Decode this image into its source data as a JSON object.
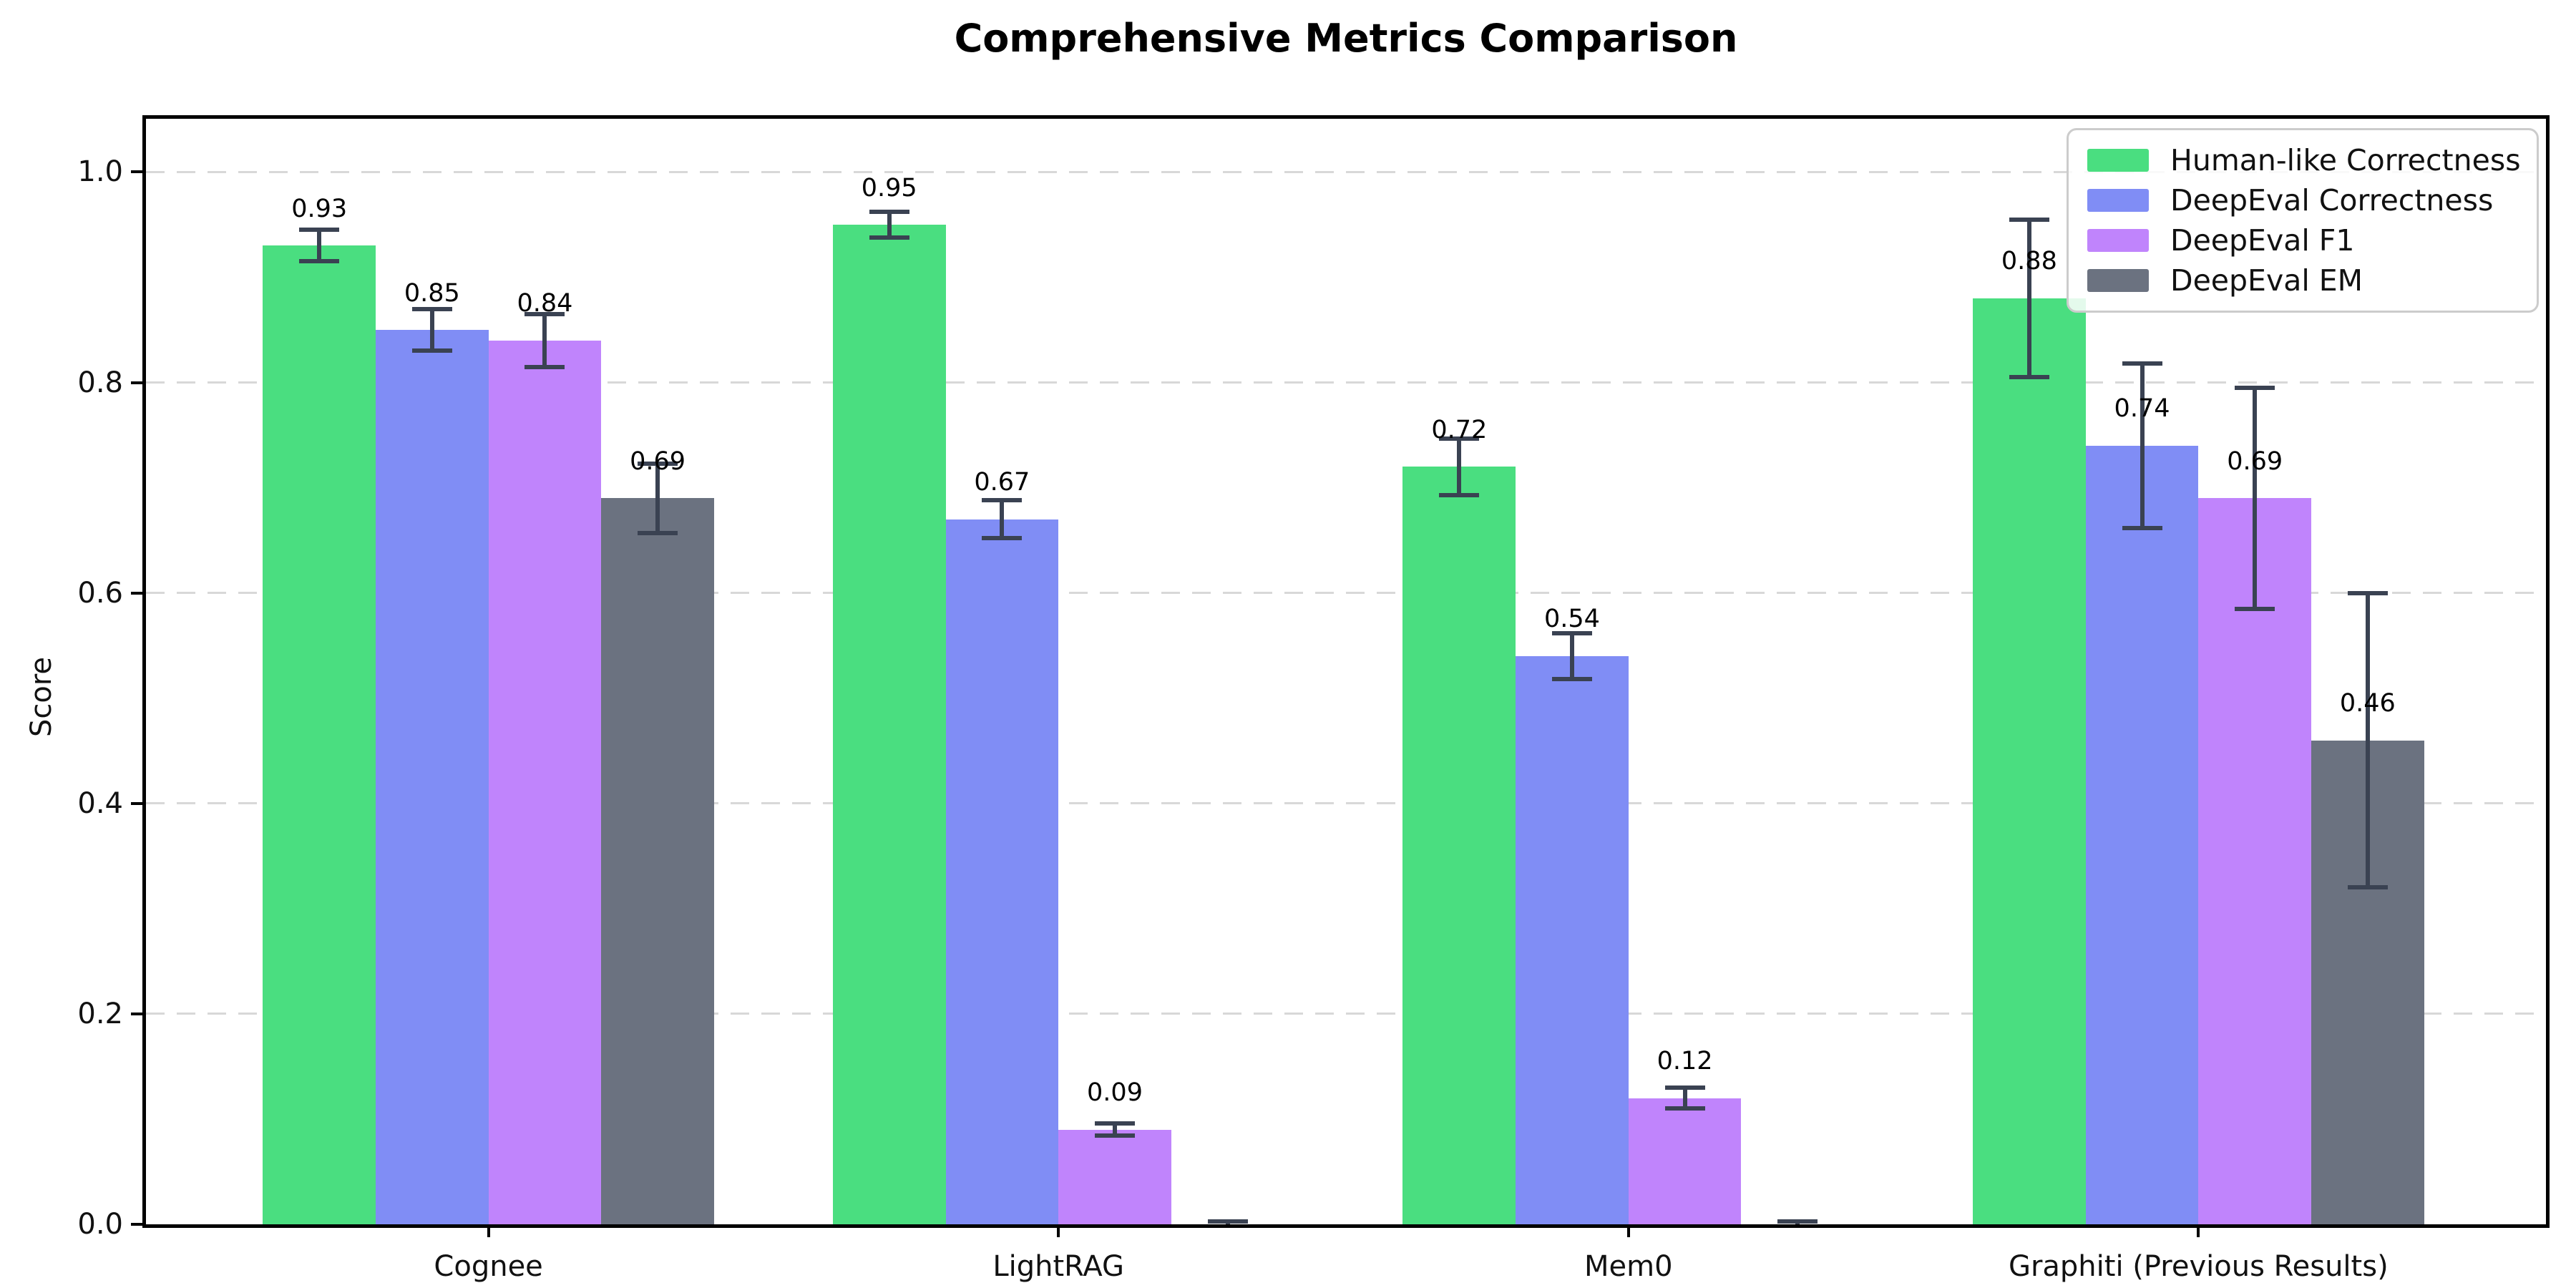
{
  "title": "Comprehensive Metrics Comparison",
  "colors": {
    "error_bar": "#3a4252",
    "gridline": "#d8d8d8",
    "axis": "#000000",
    "legend_border": "#cccccc"
  },
  "chart_data": {
    "type": "bar",
    "title": "Comprehensive Metrics Comparison",
    "xlabel": "",
    "ylabel": "Score",
    "ylim": [
      0,
      1.05
    ],
    "grid": "horizontal dashed",
    "legend_position": "upper right",
    "yticks": [
      {
        "value": 0.0,
        "label": "0.0"
      },
      {
        "value": 0.2,
        "label": "0.2"
      },
      {
        "value": 0.4,
        "label": "0.4"
      },
      {
        "value": 0.6,
        "label": "0.6"
      },
      {
        "value": 0.8,
        "label": "0.8"
      },
      {
        "value": 1.0,
        "label": "1.0"
      }
    ],
    "categories": [
      "Cognee",
      "LightRAG",
      "Mem0",
      "Graphiti (Previous Results)"
    ],
    "series": [
      {
        "name": "Human-like Correctness",
        "color": "#4ade80",
        "values": [
          0.93,
          0.95,
          0.72,
          0.88
        ],
        "errors": [
          0.015,
          0.012,
          0.027,
          0.075
        ],
        "labels": [
          "0.93",
          "0.95",
          "0.72",
          "0.88"
        ]
      },
      {
        "name": "DeepEval Correctness",
        "color": "#808df5",
        "values": [
          0.85,
          0.67,
          0.54,
          0.74
        ],
        "errors": [
          0.02,
          0.018,
          0.022,
          0.078
        ],
        "labels": [
          "0.85",
          "0.67",
          "0.54",
          "0.74"
        ]
      },
      {
        "name": "DeepEval F1",
        "color": "#c084fc",
        "values": [
          0.84,
          0.09,
          0.12,
          0.69
        ],
        "errors": [
          0.025,
          0.006,
          0.01,
          0.105
        ],
        "labels": [
          "0.84",
          "0.09",
          "0.12",
          "0.69"
        ]
      },
      {
        "name": "DeepEval EM",
        "color": "#6b7280",
        "values": [
          0.69,
          0.0,
          0.0,
          0.46
        ],
        "errors": [
          0.033,
          0.003,
          0.003,
          0.14
        ],
        "labels": [
          "0.69",
          null,
          null,
          "0.46"
        ]
      }
    ]
  }
}
